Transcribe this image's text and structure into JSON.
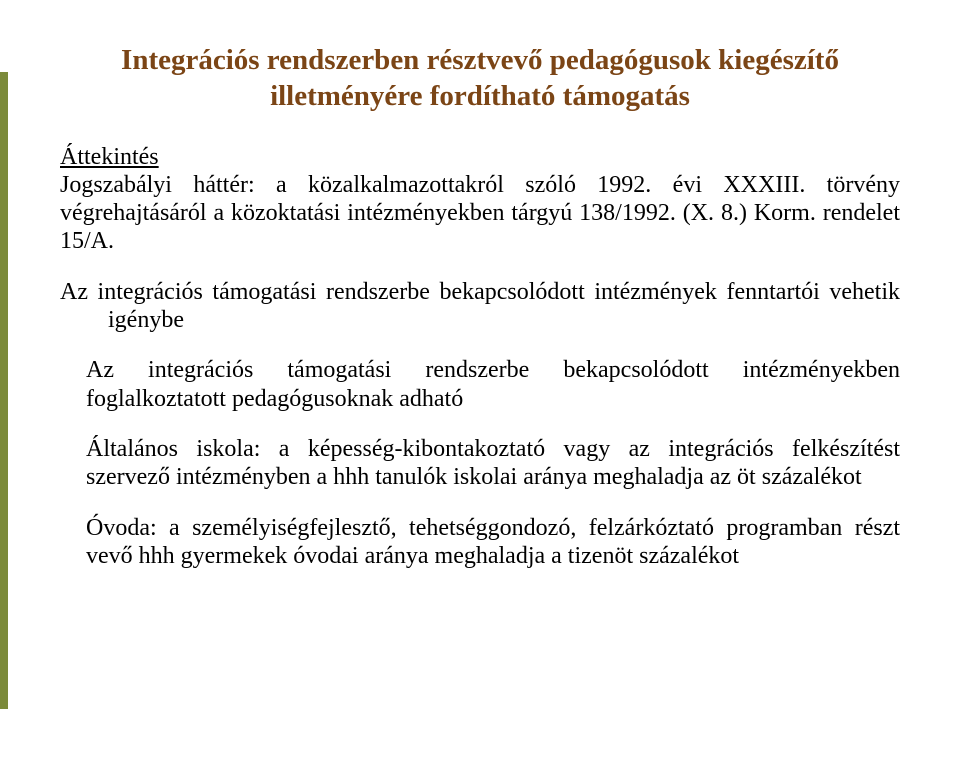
{
  "title": {
    "line1": "Integrációs rendszerben résztvevő pedagógusok kiegészítő",
    "line2": "illetményére fordítható támogatás",
    "color": "#7b4516"
  },
  "accent_color": "#7b8a3a",
  "overview": {
    "label": "Áttekintés",
    "paragraph": "Jogszabályi háttér: a közalkalmazottakról szóló 1992. évi XXXIII. törvény végrehajtásáról a közoktatási intézményekben tárgyú 138/1992. (X. 8.) Korm. rendelet 15/A."
  },
  "bullet": {
    "lead": "Az integrációs támogatási rendszerbe bekapcsolódott intézmények fenntartói vehetik igénybe",
    "items": [
      "Az integrációs támogatási rendszerbe bekapcsolódott intézményekben foglalkoztatott pedagógusoknak adható",
      "Általános iskola: a képesség-kibontakoztató vagy az integrációs felkészítést szervező intézményben a hhh tanulók iskolai aránya meghaladja az öt százalékot",
      "Óvoda: a személyiségfejlesztő, tehetséggondozó, felzárkóztató programban részt vevő hhh gyermekek óvodai aránya meghaladja a tizenöt százalékot"
    ]
  }
}
